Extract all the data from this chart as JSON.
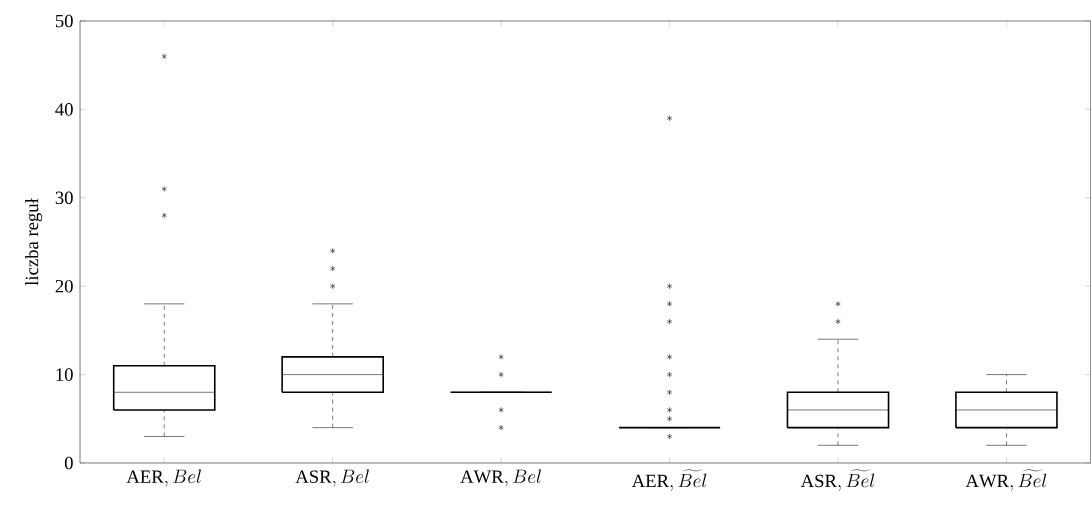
{
  "chart_data": {
    "type": "box",
    "ylabel": "liczba reguł",
    "categories": [
      "\\mathrm{AER},Bel",
      "\\mathrm{ASR},Bel",
      "\\mathrm{AWR},Bel",
      "\\mathrm{AER},\\widetilde{Bel}",
      "\\mathrm{ASR},\\widetilde{Bel}",
      "\\mathrm{AWR},\\widetilde{Bel}"
    ],
    "boxes": [
      {
        "low": 3,
        "q1": 6,
        "median": 8,
        "q3": 11,
        "high": 18,
        "outliers": [
          46,
          31,
          28
        ]
      },
      {
        "low": 4,
        "q1": 8,
        "median": 10,
        "q3": 12,
        "high": 18,
        "outliers": [
          24,
          22,
          20
        ]
      },
      {
        "low": 8,
        "q1": 8,
        "median": 8,
        "q3": 8,
        "high": 8,
        "outliers": [
          12,
          10,
          6,
          4
        ]
      },
      {
        "low": 4,
        "q1": 4,
        "median": 4,
        "q3": 4,
        "high": 4,
        "outliers": [
          39,
          20,
          18,
          16,
          12,
          10,
          8,
          6,
          5,
          3
        ]
      },
      {
        "low": 2,
        "q1": 4,
        "median": 6,
        "q3": 8,
        "high": 14,
        "outliers": [
          18,
          16
        ]
      },
      {
        "low": 2,
        "q1": 4,
        "median": 6,
        "q3": 8,
        "high": 10
      }
    ],
    "ylim": [
      0,
      50
    ],
    "yticks": [
      0,
      10,
      20,
      30,
      40,
      50
    ]
  }
}
